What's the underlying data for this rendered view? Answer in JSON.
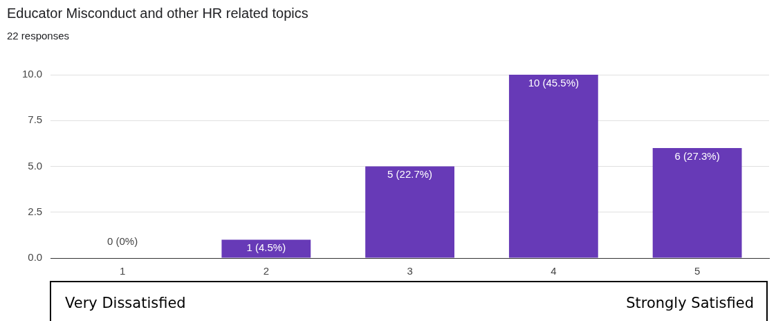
{
  "chart_data": {
    "type": "bar",
    "title": "Educator Misconduct and other HR related topics",
    "subtitle": "22 responses",
    "categories": [
      "1",
      "2",
      "3",
      "4",
      "5"
    ],
    "values": [
      0,
      1,
      5,
      10,
      6
    ],
    "value_labels": [
      "0 (0%)",
      "1 (4.5%)",
      "5 (22.7%)",
      "10 (45.5%)",
      "6 (27.3%)"
    ],
    "color": "#673ab7",
    "ylim": [
      0,
      10
    ],
    "yticks": [
      {
        "value": 0,
        "label": "0.0"
      },
      {
        "value": 2.5,
        "label": "2.5"
      },
      {
        "value": 5,
        "label": "5.0"
      },
      {
        "value": 7.5,
        "label": "7.5"
      },
      {
        "value": 10,
        "label": "10.0"
      }
    ],
    "grid": "y",
    "legend": false,
    "annotations": [
      "Very Dissatisfied",
      "Strongly Satisfied"
    ]
  }
}
